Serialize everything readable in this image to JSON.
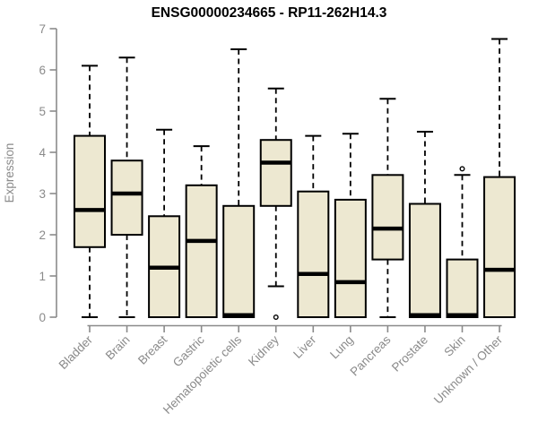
{
  "chart_data": {
    "type": "boxplot",
    "title": "ENSG00000234665 - RP11-262H14.3",
    "ylabel": "Expression",
    "xlabel": "",
    "ylim": [
      0,
      7
    ],
    "yticks": [
      0,
      1,
      2,
      3,
      4,
      5,
      6,
      7
    ],
    "grid": false,
    "legend": "none",
    "categories": [
      "Bladder",
      "Brain",
      "Breast",
      "Gastric",
      "Hematopoietic cells",
      "Kidney",
      "Liver",
      "Lung",
      "Pancreas",
      "Prostate",
      "Skin",
      "Unknown / Other"
    ],
    "series": [
      {
        "name": "Bladder",
        "whisker_low": 0,
        "q1": 1.7,
        "median": 2.6,
        "q3": 4.4,
        "whisker_high": 6.1,
        "outliers": []
      },
      {
        "name": "Brain",
        "whisker_low": 0,
        "q1": 2.0,
        "median": 3.0,
        "q3": 3.8,
        "whisker_high": 6.3,
        "outliers": []
      },
      {
        "name": "Breast",
        "whisker_low": 0,
        "q1": 0,
        "median": 1.2,
        "q3": 2.45,
        "whisker_high": 4.55,
        "outliers": []
      },
      {
        "name": "Gastric",
        "whisker_low": 0,
        "q1": 0,
        "median": 1.85,
        "q3": 3.2,
        "whisker_high": 4.15,
        "outliers": []
      },
      {
        "name": "Hematopoietic cells",
        "whisker_low": 0,
        "q1": 0,
        "median": 0.05,
        "q3": 2.7,
        "whisker_high": 6.5,
        "outliers": []
      },
      {
        "name": "Kidney",
        "whisker_low": 0.75,
        "q1": 2.7,
        "median": 3.75,
        "q3": 4.3,
        "whisker_high": 5.55,
        "outliers": [
          0
        ]
      },
      {
        "name": "Liver",
        "whisker_low": 0,
        "q1": 0,
        "median": 1.05,
        "q3": 3.05,
        "whisker_high": 4.4,
        "outliers": []
      },
      {
        "name": "Lung",
        "whisker_low": 0,
        "q1": 0,
        "median": 0.85,
        "q3": 2.85,
        "whisker_high": 4.45,
        "outliers": []
      },
      {
        "name": "Pancreas",
        "whisker_low": 0,
        "q1": 1.4,
        "median": 2.15,
        "q3": 3.45,
        "whisker_high": 5.3,
        "outliers": []
      },
      {
        "name": "Prostate",
        "whisker_low": 0,
        "q1": 0,
        "median": 0.05,
        "q3": 2.75,
        "whisker_high": 4.5,
        "outliers": []
      },
      {
        "name": "Skin",
        "whisker_low": 0,
        "q1": 0,
        "median": 0.05,
        "q3": 1.4,
        "whisker_high": 3.45,
        "outliers": [
          3.6
        ]
      },
      {
        "name": "Unknown / Other",
        "whisker_low": 0,
        "q1": 0,
        "median": 1.15,
        "q3": 3.4,
        "whisker_high": 6.75,
        "outliers": []
      }
    ],
    "colors": {
      "box_fill": "#ede8d1",
      "box_border": "#000000",
      "median": "#000000",
      "whisker": "#000000",
      "outlier": "#000000",
      "axis": "#8a8a8a",
      "tick_label": "#8a8a8a",
      "title": "#000000"
    }
  }
}
